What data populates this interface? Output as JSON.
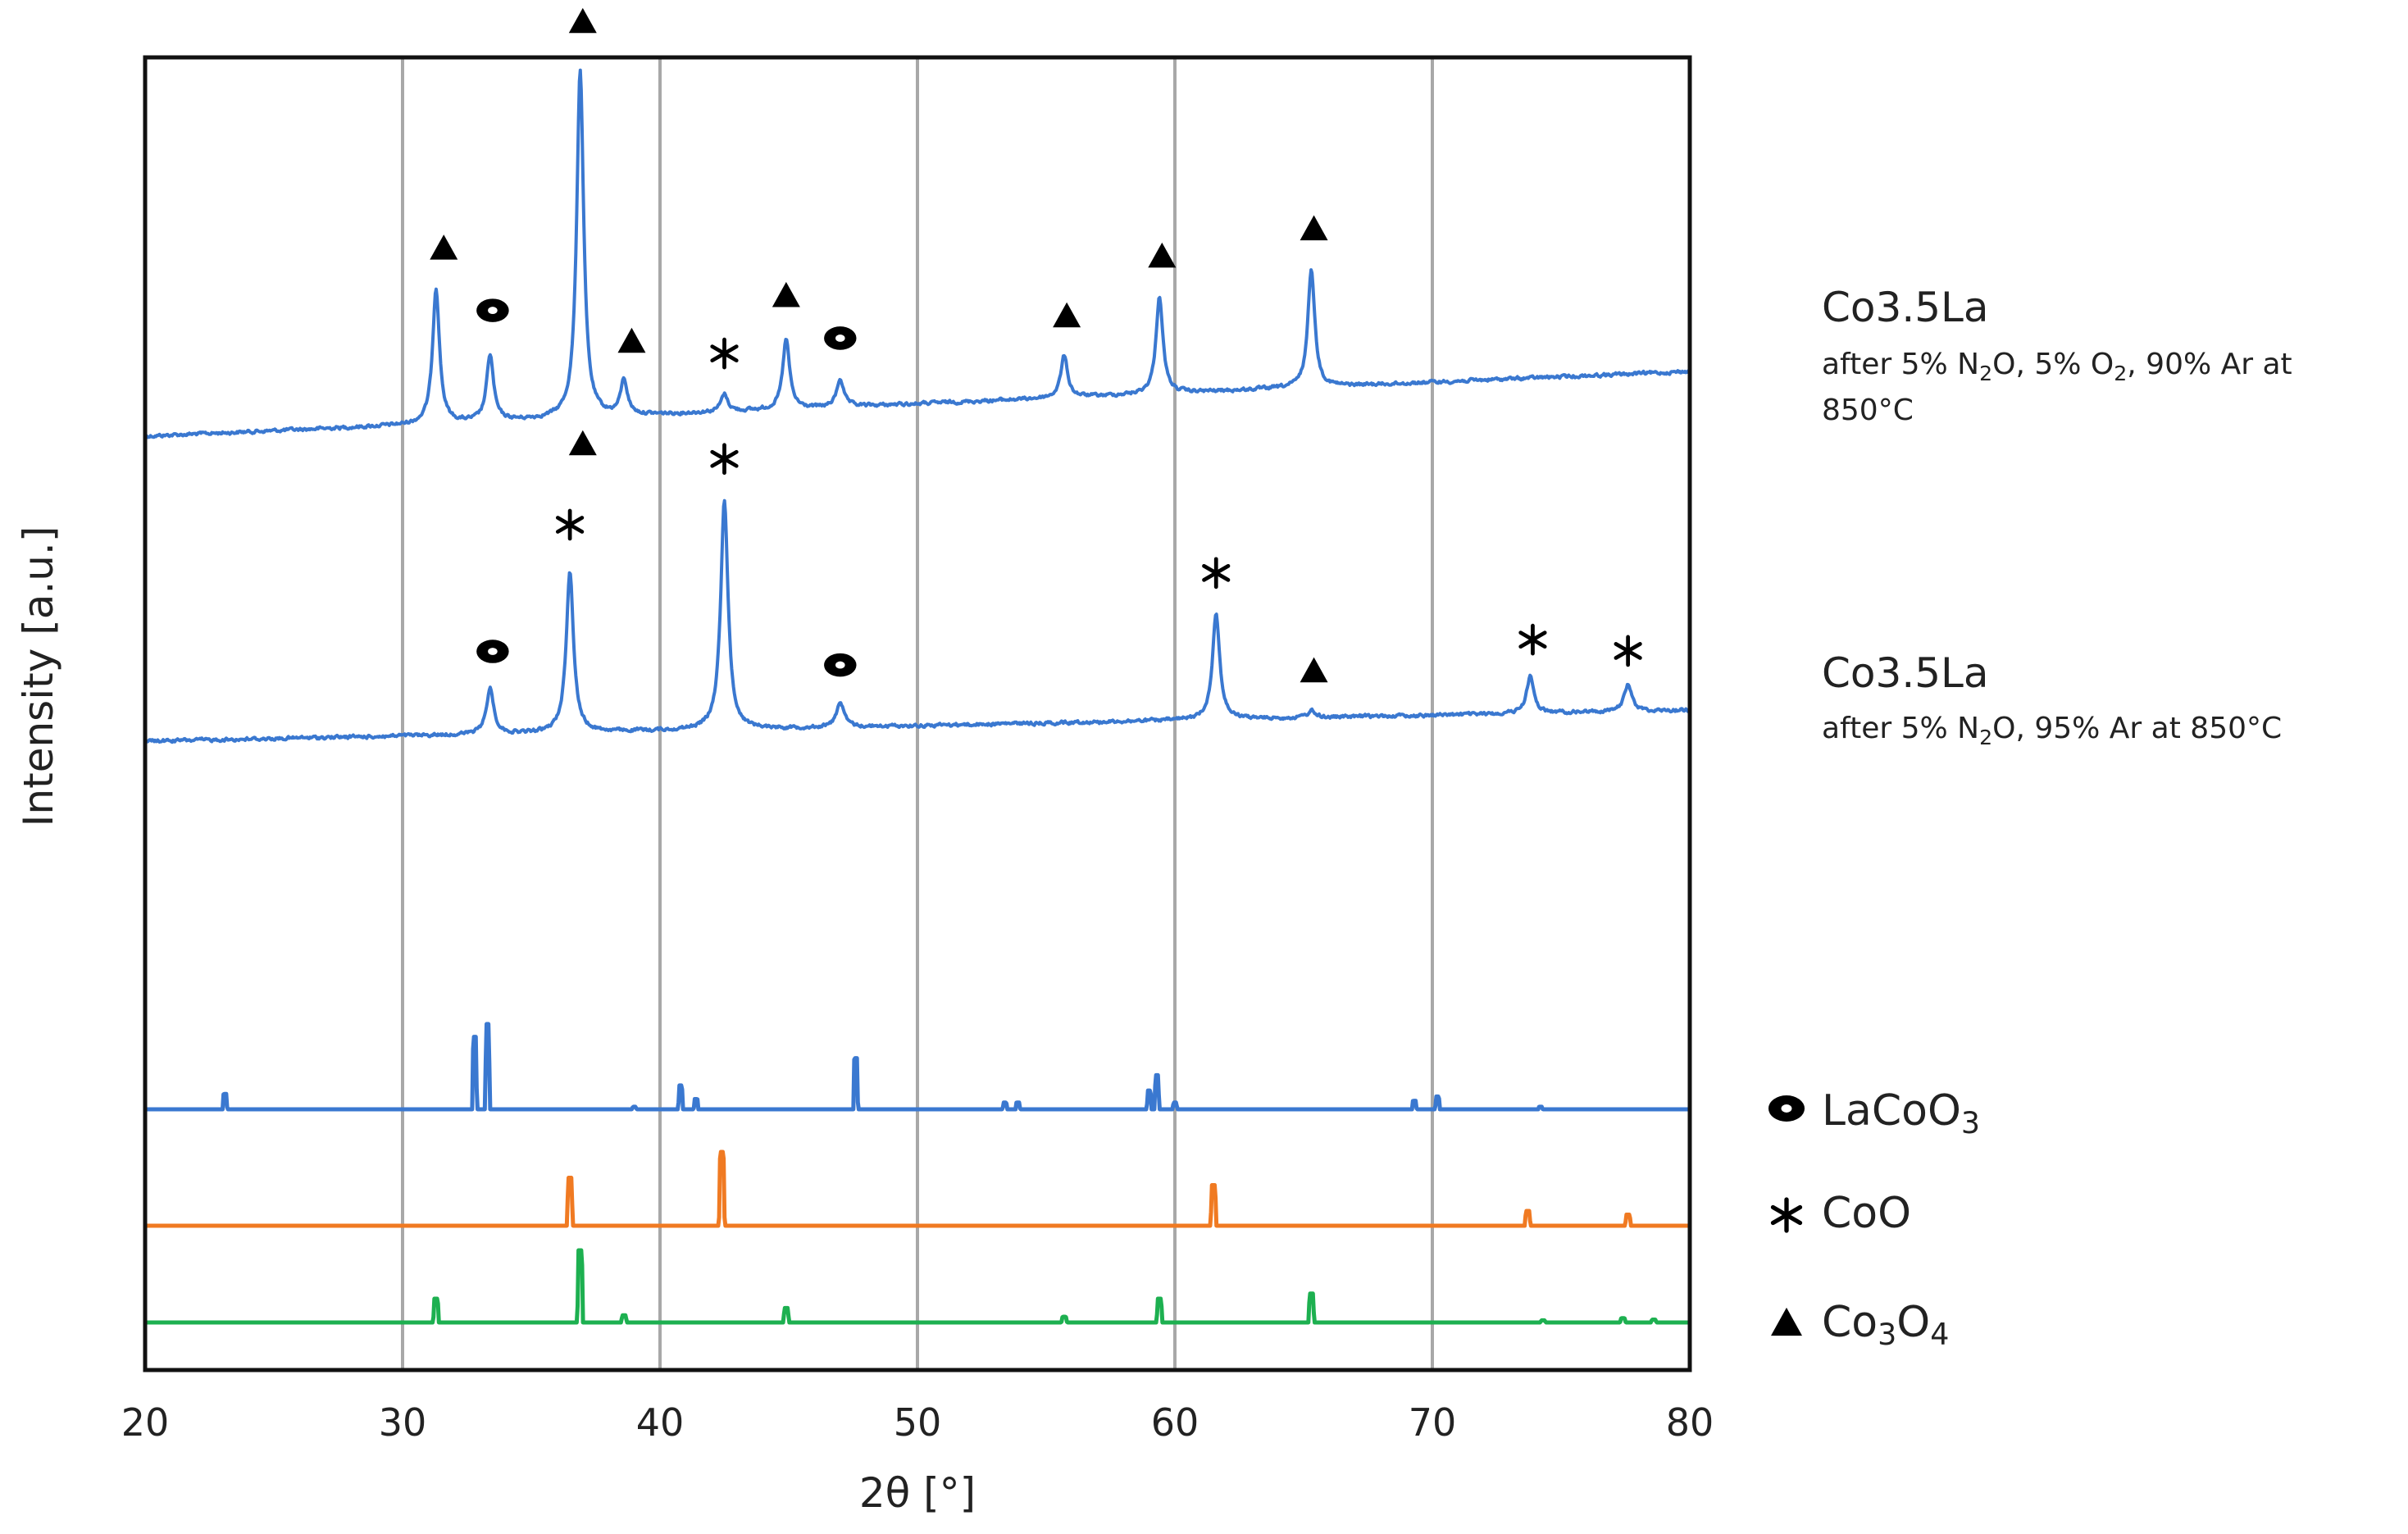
{
  "chart_data": {
    "type": "line",
    "title": "",
    "xlabel": "2θ [°]",
    "ylabel": "Intensity [a.u.]",
    "xlim": [
      20,
      80
    ],
    "x_ticks": [
      20,
      30,
      40,
      50,
      60,
      70,
      80
    ],
    "grid": "vertical lines at 30, 40, 50, 60, 70",
    "y_units": "arbitrary, stacked traces (0 = trace baseline, 100 = tallest peak)",
    "series": [
      {
        "name": "Co3.5La",
        "condition_parts": [
          "after 5% N",
          "2",
          "O, 5% O",
          "2",
          ", 90% Ar at"
        ],
        "condition_line2": "850°C",
        "color": "#3a78d0",
        "kind": "measured",
        "peaks": [
          {
            "x": 31.3,
            "y": 39
          },
          {
            "x": 33.4,
            "y": 19
          },
          {
            "x": 36.9,
            "y": 100
          },
          {
            "x": 38.6,
            "y": 10
          },
          {
            "x": 42.5,
            "y": 5
          },
          {
            "x": 44.9,
            "y": 20
          },
          {
            "x": 47.0,
            "y": 8
          },
          {
            "x": 55.7,
            "y": 12
          },
          {
            "x": 59.4,
            "y": 28
          },
          {
            "x": 65.3,
            "y": 34
          }
        ],
        "markers": [
          {
            "symbol": "triangle",
            "x": 37.0
          },
          {
            "symbol": "triangle",
            "x": 31.6
          },
          {
            "symbol": "circle",
            "x": 33.5
          },
          {
            "symbol": "triangle",
            "x": 38.9
          },
          {
            "symbol": "asterisk",
            "x": 42.5
          },
          {
            "symbol": "triangle",
            "x": 44.9
          },
          {
            "symbol": "circle",
            "x": 47.0
          },
          {
            "symbol": "triangle",
            "x": 55.8
          },
          {
            "symbol": "triangle",
            "x": 59.5
          },
          {
            "symbol": "triangle",
            "x": 65.4
          }
        ]
      },
      {
        "name": "Co3.5La",
        "condition_parts": [
          "after 5% N",
          "2",
          "O, 95% Ar at 850°C"
        ],
        "color": "#3a78d0",
        "kind": "measured",
        "peaks": [
          {
            "x": 33.4,
            "y": 20
          },
          {
            "x": 36.5,
            "y": 70
          },
          {
            "x": 42.5,
            "y": 100
          },
          {
            "x": 47.0,
            "y": 11
          },
          {
            "x": 61.6,
            "y": 46
          },
          {
            "x": 65.3,
            "y": 3
          },
          {
            "x": 73.8,
            "y": 16
          },
          {
            "x": 77.6,
            "y": 12
          }
        ],
        "markers": [
          {
            "symbol": "triangle",
            "x": 37.0
          },
          {
            "symbol": "asterisk",
            "x": 36.5
          },
          {
            "symbol": "asterisk",
            "x": 42.5
          },
          {
            "symbol": "circle",
            "x": 33.5
          },
          {
            "symbol": "circle",
            "x": 47.0
          },
          {
            "symbol": "asterisk",
            "x": 61.6
          },
          {
            "symbol": "triangle",
            "x": 65.4
          },
          {
            "symbol": "asterisk",
            "x": 73.9
          },
          {
            "symbol": "asterisk",
            "x": 77.6
          }
        ]
      },
      {
        "name": "LaCoO3",
        "color": "#3a78d0",
        "kind": "reference",
        "peaks": [
          {
            "x": 23.1,
            "y": 18
          },
          {
            "x": 32.8,
            "y": 85
          },
          {
            "x": 33.3,
            "y": 100
          },
          {
            "x": 39.0,
            "y": 3
          },
          {
            "x": 40.8,
            "y": 28
          },
          {
            "x": 41.4,
            "y": 12
          },
          {
            "x": 47.6,
            "y": 60
          },
          {
            "x": 53.4,
            "y": 8
          },
          {
            "x": 53.9,
            "y": 8
          },
          {
            "x": 59.0,
            "y": 22
          },
          {
            "x": 59.3,
            "y": 40
          },
          {
            "x": 60.0,
            "y": 8
          },
          {
            "x": 69.3,
            "y": 10
          },
          {
            "x": 70.2,
            "y": 15
          },
          {
            "x": 74.2,
            "y": 3
          }
        ]
      },
      {
        "name": "CoO",
        "color": "#f07a22",
        "kind": "reference",
        "peaks": [
          {
            "x": 36.5,
            "y": 65
          },
          {
            "x": 42.4,
            "y": 100
          },
          {
            "x": 61.5,
            "y": 55
          },
          {
            "x": 73.7,
            "y": 20
          },
          {
            "x": 77.6,
            "y": 15
          }
        ]
      },
      {
        "name": "Co3O4",
        "color": "#1db050",
        "kind": "reference",
        "peaks": [
          {
            "x": 31.3,
            "y": 33
          },
          {
            "x": 36.9,
            "y": 100
          },
          {
            "x": 38.6,
            "y": 10
          },
          {
            "x": 44.9,
            "y": 20
          },
          {
            "x": 55.7,
            "y": 8
          },
          {
            "x": 59.4,
            "y": 33
          },
          {
            "x": 65.3,
            "y": 40
          },
          {
            "x": 74.3,
            "y": 3
          },
          {
            "x": 77.4,
            "y": 6
          },
          {
            "x": 78.6,
            "y": 4
          }
        ]
      }
    ],
    "legend": [
      {
        "symbol": "circle",
        "parts": [
          "LaCoO",
          "3"
        ]
      },
      {
        "symbol": "asterisk",
        "parts": [
          "CoO"
        ]
      },
      {
        "symbol": "triangle",
        "parts": [
          "Co",
          "3",
          "O",
          "4"
        ]
      }
    ],
    "legend_placement": "right, beside reference patterns"
  }
}
